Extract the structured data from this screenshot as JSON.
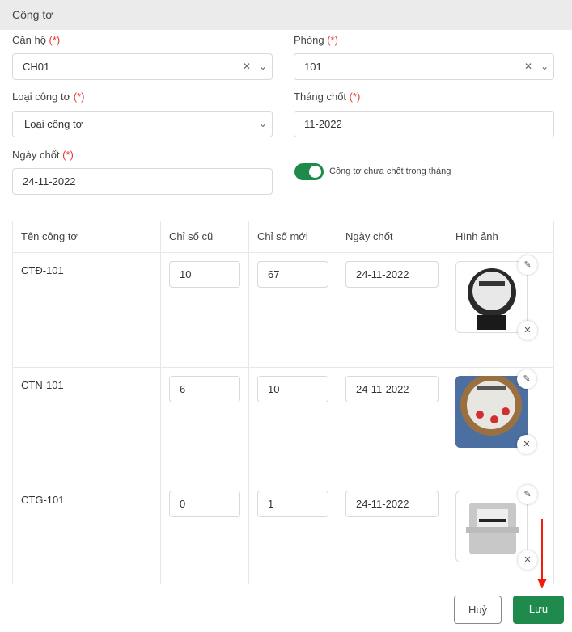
{
  "title": "Công tơ",
  "required_mark": "(*)",
  "form": {
    "apartment": {
      "label": "Căn hộ",
      "value": "CH01"
    },
    "room": {
      "label": "Phòng",
      "value": "101"
    },
    "meter_type": {
      "label": "Loại công tơ",
      "placeholder": "Loại công tơ"
    },
    "close_month": {
      "label": "Tháng chốt",
      "value": "11-2022"
    },
    "close_date": {
      "label": "Ngày chốt",
      "value": "24-11-2022"
    },
    "toggle": {
      "label": "Công tơ chưa chốt trong tháng",
      "on": true
    }
  },
  "table": {
    "headers": [
      "Tên công tơ",
      "Chỉ số cũ",
      "Chỉ số mới",
      "Ngày chốt",
      "Hình ảnh"
    ],
    "rows": [
      {
        "name": "CTĐ-101",
        "old": "10",
        "new": "67",
        "date": "24-11-2022",
        "image": "electric-meter"
      },
      {
        "name": "CTN-101",
        "old": "6",
        "new": "10",
        "date": "24-11-2022",
        "image": "water-meter"
      },
      {
        "name": "CTG-101",
        "old": "0",
        "new": "1",
        "date": "24-11-2022",
        "image": "gas-meter"
      }
    ]
  },
  "footer": {
    "cancel": "Huỷ",
    "save": "Lưu"
  },
  "colors": {
    "primary": "#1e8a4c",
    "required": "#e53935",
    "arrow": "#f41d0a"
  }
}
